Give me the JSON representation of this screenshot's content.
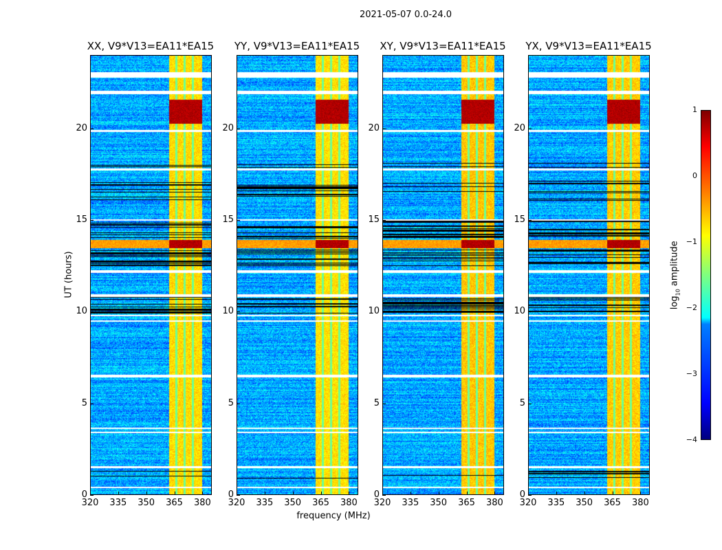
{
  "suptitle": "2021-05-07 0.0-24.0",
  "chart_data": {
    "type": "heatmap",
    "panels": [
      {
        "title": "XX, V9*V13=EA11*EA15",
        "rfi_scale": 1.0
      },
      {
        "title": "YY, V9*V13=EA11*EA15",
        "rfi_scale": 1.05
      },
      {
        "title": "XY, V9*V13=EA11*EA15",
        "rfi_scale": 0.85
      },
      {
        "title": "YX, V9*V13=EA11*EA15",
        "rfi_scale": 0.9
      }
    ],
    "xlabel": "frequency (MHz)",
    "ylabel": "UT (hours)",
    "xlim": [
      320,
      385
    ],
    "ylim": [
      0,
      24
    ],
    "xticks": [
      "320",
      "335",
      "350",
      "365",
      "380"
    ],
    "xtick_values": [
      320,
      335,
      350,
      365,
      380
    ],
    "yticks": [
      "0",
      "5",
      "10",
      "15",
      "20"
    ],
    "ytick_values": [
      0,
      5,
      10,
      15,
      20
    ],
    "colorbar": {
      "label_main": "log",
      "label_sub": "10",
      "label_rest": " amplitude",
      "ticks": [
        "1",
        "0",
        "−1",
        "−2",
        "−3",
        "−4"
      ],
      "tick_values": [
        1,
        0,
        -1,
        -2,
        -3,
        -4
      ],
      "range": [
        -4,
        1
      ],
      "colormap": "jet"
    },
    "background_level": -2.8,
    "rfi_band_mhz": [
      362,
      380
    ],
    "rfi_band_level": -0.7,
    "rfi_band_gaps_mhz": [
      366,
      370.5,
      375
    ],
    "strong_rfi_hours": [
      [
        13.5,
        13.95
      ],
      [
        20.3,
        21.6
      ]
    ],
    "flagged_hours": [
      [
        0.35,
        0.45
      ],
      [
        1.45,
        1.55
      ],
      [
        3.35,
        3.45
      ],
      [
        3.6,
        3.65
      ],
      [
        6.4,
        6.55
      ],
      [
        9.45,
        9.55
      ],
      [
        9.75,
        9.85
      ],
      [
        10.8,
        10.95
      ],
      [
        12.15,
        12.3
      ],
      [
        15.0,
        15.05
      ],
      [
        17.75,
        17.85
      ],
      [
        19.85,
        19.95
      ],
      [
        21.9,
        22.1
      ],
      [
        22.8,
        23.1
      ]
    ],
    "dropout_hours": [
      [
        0.9,
        1.3
      ],
      [
        9.9,
        10.8
      ],
      [
        12.5,
        13.4
      ],
      [
        14.0,
        15.0
      ],
      [
        16.1,
        17.2
      ],
      [
        17.9,
        18.2
      ]
    ]
  }
}
